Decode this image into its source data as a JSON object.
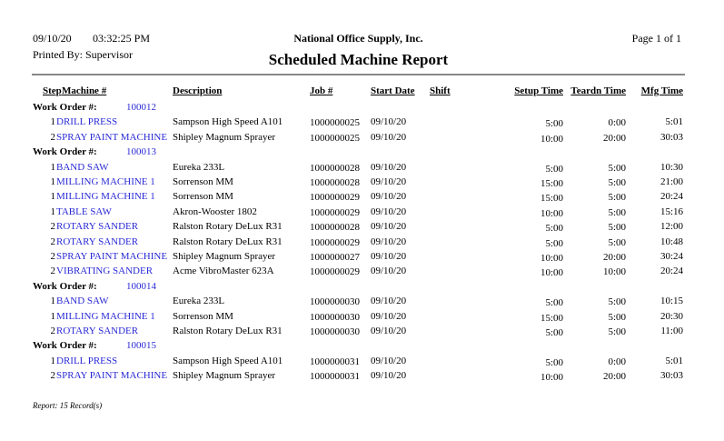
{
  "header": {
    "date": "09/10/20",
    "time": "03:32:25 PM",
    "printed_by": "Printed By: Supervisor",
    "company": "National Office Supply, Inc.",
    "title": "Scheduled Machine Report",
    "page": "Page 1 of  1"
  },
  "columns": {
    "step": "Step",
    "machine": "Machine #",
    "description": "Description",
    "job": "Job #",
    "start_date": "Start Date",
    "shift": "Shift",
    "setup": "Setup Time",
    "teardown": "Teardn Time",
    "mfg": "Mfg Time"
  },
  "work_order_label": "Work Order #:",
  "work_orders": [
    {
      "number": "100012",
      "rows": [
        {
          "step": "1",
          "machine": "DRILL PRESS",
          "description": "Sampson High Speed A101",
          "job": "1000000025",
          "start_date": "09/10/20",
          "setup": "5:00",
          "teardown": "0:00",
          "mfg": "5:01"
        },
        {
          "step": "2",
          "machine": "SPRAY PAINT MACHINE",
          "description": "Shipley Magnum Sprayer",
          "job": "1000000025",
          "start_date": "09/10/20",
          "setup": "10:00",
          "teardown": "20:00",
          "mfg": "30:03"
        }
      ]
    },
    {
      "number": "100013",
      "rows": [
        {
          "step": "1",
          "machine": "BAND SAW",
          "description": "Eureka 233L",
          "job": "1000000028",
          "start_date": "09/10/20",
          "setup": "5:00",
          "teardown": "5:00",
          "mfg": "10:30"
        },
        {
          "step": "1",
          "machine": "MILLING MACHINE 1",
          "description": "Sorrenson MM",
          "job": "1000000028",
          "start_date": "09/10/20",
          "setup": "15:00",
          "teardown": "5:00",
          "mfg": "21:00"
        },
        {
          "step": "1",
          "machine": "MILLING MACHINE 1",
          "description": "Sorrenson MM",
          "job": "1000000029",
          "start_date": "09/10/20",
          "setup": "15:00",
          "teardown": "5:00",
          "mfg": "20:24"
        },
        {
          "step": "1",
          "machine": "TABLE SAW",
          "description": "Akron-Wooster 1802",
          "job": "1000000029",
          "start_date": "09/10/20",
          "setup": "10:00",
          "teardown": "5:00",
          "mfg": "15:16"
        },
        {
          "step": "2",
          "machine": "ROTARY SANDER",
          "description": "Ralston Rotary DeLux R31",
          "job": "1000000028",
          "start_date": "09/10/20",
          "setup": "5:00",
          "teardown": "5:00",
          "mfg": "12:00"
        },
        {
          "step": "2",
          "machine": "ROTARY SANDER",
          "description": "Ralston Rotary DeLux R31",
          "job": "1000000029",
          "start_date": "09/10/20",
          "setup": "5:00",
          "teardown": "5:00",
          "mfg": "10:48"
        },
        {
          "step": "2",
          "machine": "SPRAY PAINT MACHINE",
          "description": "Shipley Magnum Sprayer",
          "job": "1000000027",
          "start_date": "09/10/20",
          "setup": "10:00",
          "teardown": "20:00",
          "mfg": "30:24"
        },
        {
          "step": "2",
          "machine": "VIBRATING SANDER",
          "description": "Acme VibroMaster 623A",
          "job": "1000000029",
          "start_date": "09/10/20",
          "setup": "10:00",
          "teardown": "10:00",
          "mfg": "20:24"
        }
      ]
    },
    {
      "number": "100014",
      "rows": [
        {
          "step": "1",
          "machine": "BAND SAW",
          "description": "Eureka 233L",
          "job": "1000000030",
          "start_date": "09/10/20",
          "setup": "5:00",
          "teardown": "5:00",
          "mfg": "10:15"
        },
        {
          "step": "1",
          "machine": "MILLING MACHINE 1",
          "description": "Sorrenson MM",
          "job": "1000000030",
          "start_date": "09/10/20",
          "setup": "15:00",
          "teardown": "5:00",
          "mfg": "20:30"
        },
        {
          "step": "2",
          "machine": "ROTARY SANDER",
          "description": "Ralston Rotary DeLux R31",
          "job": "1000000030",
          "start_date": "09/10/20",
          "setup": "5:00",
          "teardown": "5:00",
          "mfg": "11:00"
        }
      ]
    },
    {
      "number": "100015",
      "rows": [
        {
          "step": "1",
          "machine": "DRILL PRESS",
          "description": "Sampson High Speed A101",
          "job": "1000000031",
          "start_date": "09/10/20",
          "setup": "5:00",
          "teardown": "0:00",
          "mfg": "5:01"
        },
        {
          "step": "2",
          "machine": "SPRAY PAINT MACHINE",
          "description": "Shipley Magnum Sprayer",
          "job": "1000000031",
          "start_date": "09/10/20",
          "setup": "10:00",
          "teardown": "20:00",
          "mfg": "30:03"
        }
      ]
    }
  ],
  "footer": {
    "records": "Report: 15 Record(s)"
  },
  "colors": {
    "link_blue": "#2a2ad6",
    "rule": "#888888"
  }
}
